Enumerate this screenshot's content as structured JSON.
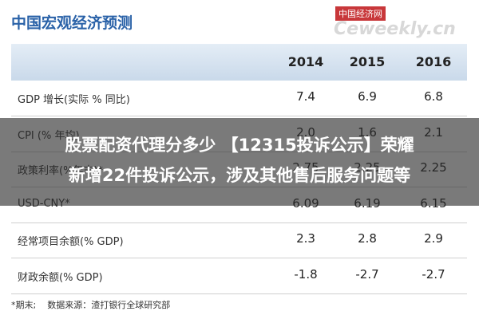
{
  "header": {
    "title": "中国宏观经济预测",
    "watermark": "中国经济网",
    "watermark_site": "Ceweekly.cn"
  },
  "table": {
    "columns": [
      "2014",
      "2015",
      "2016"
    ],
    "rows": [
      [
        "GDP 增长(实际 % 同比)",
        "7.4",
        "6.9",
        "6.8"
      ],
      [
        "CPI (% 年均)",
        "2.0",
        "1.6",
        "2.1"
      ],
      [
        "政策利率(%年末)*",
        "2.75",
        "2.25",
        "2.25"
      ],
      [
        "USD-CNY*",
        "6.09",
        "6.19",
        "6.15"
      ],
      [
        "经常项目余额(% GDP)",
        "2.3",
        "2.8",
        "2.9"
      ],
      [
        "财政余额(% GDP)",
        "-1.8",
        "-2.7",
        "-2.7"
      ]
    ]
  },
  "footer": {
    "note": "*期末;",
    "source": "数据来源：渣打银行全球研究部"
  },
  "overlay": {
    "lines": [
      "股票配资代理分多少 【12315投诉公示】荣耀",
      "新增22件投诉公示，涉及其他售后服务问题等"
    ]
  }
}
